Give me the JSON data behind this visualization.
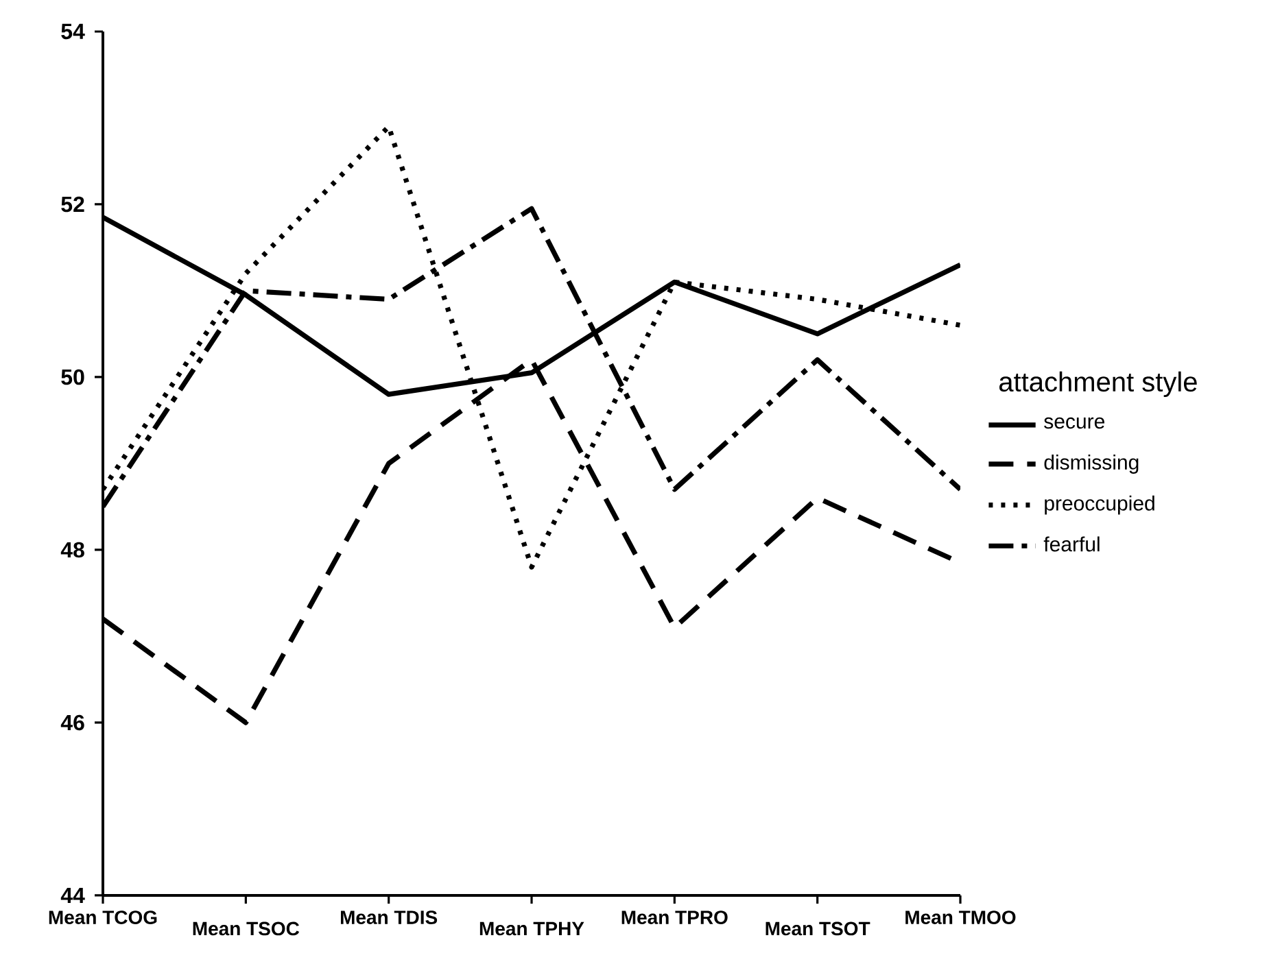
{
  "chart_data": {
    "type": "line",
    "categories": [
      "Mean TCOG",
      "Mean TSOC",
      "Mean TDIS",
      "Mean TPHY",
      "Mean TPRO",
      "Mean TSOT",
      "Mean TMOO"
    ],
    "legend_title": "attachment style",
    "series": [
      {
        "name": "secure",
        "color": "#000000",
        "line_style": "solid",
        "values": [
          51.85,
          50.95,
          49.8,
          50.05,
          51.1,
          50.5,
          51.3
        ]
      },
      {
        "name": "dismissing",
        "color": "#000000",
        "line_style": "dashed",
        "values": [
          47.2,
          46.0,
          49.0,
          50.2,
          47.1,
          48.6,
          47.85
        ]
      },
      {
        "name": "preoccupied",
        "color": "#000000",
        "line_style": "dotted",
        "values": [
          48.7,
          51.2,
          52.9,
          47.8,
          51.1,
          50.9,
          50.6
        ]
      },
      {
        "name": "fearful",
        "color": "#000000",
        "line_style": "dashdot",
        "values": [
          48.5,
          51.0,
          50.9,
          51.95,
          48.7,
          50.2,
          48.7
        ]
      }
    ],
    "ylim": [
      44,
      54
    ],
    "yticks": [
      44,
      46,
      48,
      50,
      52,
      54
    ],
    "grid": false,
    "legend": "right",
    "marker": "none"
  }
}
